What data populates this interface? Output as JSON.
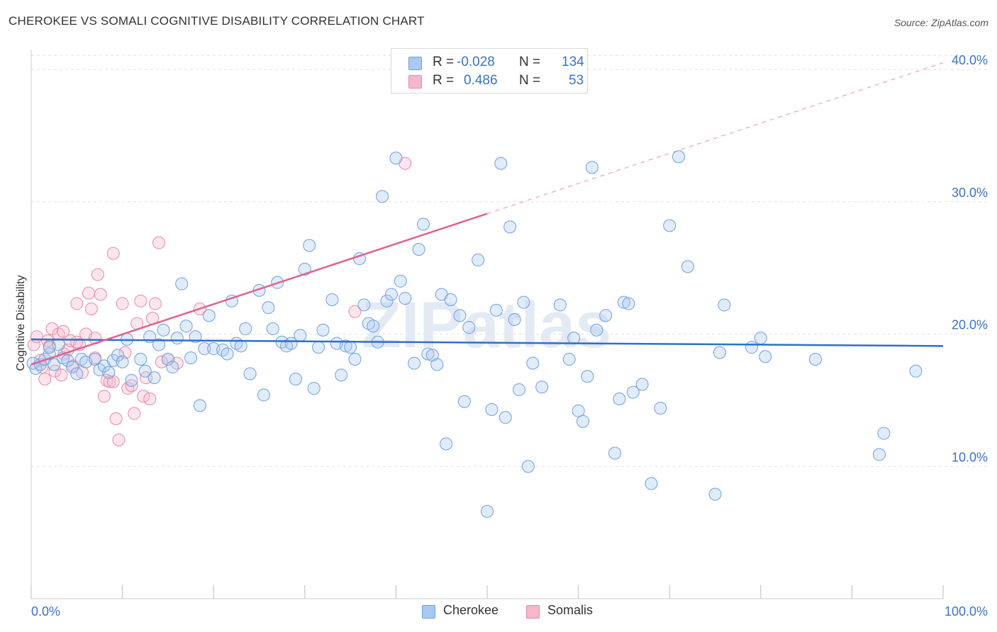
{
  "header": {
    "title": "CHEROKEE VS SOMALI COGNITIVE DISABILITY CORRELATION CHART",
    "source": "Source: ZipAtlas.com"
  },
  "watermark": "ZIPatlas",
  "legend": {
    "r_label": "R =",
    "n_label": "N =",
    "rows": [
      {
        "name": "Cherokee",
        "r": "-0.028",
        "n": "134",
        "fill": "#aac8f0",
        "stroke": "#6f9fdc"
      },
      {
        "name": "Somalis",
        "r": "0.486",
        "n": "53",
        "fill": "#f5b8cb",
        "stroke": "#e889a6"
      }
    ]
  },
  "colors": {
    "cherokee_fill": "rgba(170,200,240,0.35)",
    "cherokee_stroke": "#6f9fdc",
    "cherokee_line": "#2e6fcd",
    "somali_fill": "rgba(245,184,203,0.35)",
    "somali_stroke": "#e889a6",
    "somali_line": "#e0628e",
    "tick_label": "#3b73c4",
    "grid": "#e2e2e2"
  },
  "chart_data": {
    "type": "scatter",
    "title": "CHEROKEE VS SOMALI COGNITIVE DISABILITY CORRELATION CHART",
    "xlabel": "",
    "ylabel": "Cognitive Disability",
    "xlim": [
      0,
      100
    ],
    "ylim": [
      0,
      41.5
    ],
    "x_tick_labels": [
      "0.0%",
      "100.0%"
    ],
    "y_ticks": [
      10,
      20,
      30,
      40
    ],
    "y_tick_labels": [
      "10.0%",
      "20.0%",
      "30.0%",
      "40.0%"
    ],
    "grid": true,
    "legend_position": "top-center",
    "series": [
      {
        "name": "Cherokee",
        "trend": {
          "x": [
            0,
            100
          ],
          "y": [
            19.6,
            19.1
          ],
          "style": "solid"
        },
        "points": [
          [
            0.2,
            17.8
          ],
          [
            0.5,
            17.4
          ],
          [
            1,
            17.7
          ],
          [
            1.5,
            18.1
          ],
          [
            2,
            18.5
          ],
          [
            2.5,
            17.7
          ],
          [
            3,
            19.2
          ],
          [
            3.5,
            18.2
          ],
          [
            4,
            18.0
          ],
          [
            4.5,
            17.5
          ],
          [
            5,
            17.0
          ],
          [
            5.5,
            18.1
          ],
          [
            6,
            17.9
          ],
          [
            7,
            18.1
          ],
          [
            7.5,
            17.3
          ],
          [
            8,
            17.6
          ],
          [
            8.5,
            17.1
          ],
          [
            9,
            18.0
          ],
          [
            9.5,
            18.4
          ],
          [
            10,
            17.9
          ],
          [
            10.5,
            19.6
          ],
          [
            11,
            16.5
          ],
          [
            12,
            18.1
          ],
          [
            12.5,
            17.2
          ],
          [
            13,
            19.8
          ],
          [
            13.5,
            16.7
          ],
          [
            14,
            19.2
          ],
          [
            14.5,
            20.3
          ],
          [
            15,
            18.1
          ],
          [
            15.5,
            17.5
          ],
          [
            16,
            19.7
          ],
          [
            16.5,
            23.8
          ],
          [
            17,
            20.6
          ],
          [
            17.5,
            18.2
          ],
          [
            18,
            19.8
          ],
          [
            18.5,
            14.6
          ],
          [
            19,
            18.9
          ],
          [
            19.5,
            21.4
          ],
          [
            20,
            18.9
          ],
          [
            21,
            18.8
          ],
          [
            21.5,
            18.5
          ],
          [
            22,
            22.5
          ],
          [
            22.5,
            19.3
          ],
          [
            23,
            19.1
          ],
          [
            23.5,
            20.4
          ],
          [
            24,
            17.0
          ],
          [
            25,
            23.3
          ],
          [
            25.5,
            15.4
          ],
          [
            26,
            22.0
          ],
          [
            26.5,
            20.4
          ],
          [
            27,
            23.9
          ],
          [
            27.5,
            19.4
          ],
          [
            28,
            19.1
          ],
          [
            28.5,
            19.3
          ],
          [
            29,
            16.6
          ],
          [
            29.5,
            19.9
          ],
          [
            30,
            24.9
          ],
          [
            30.5,
            26.7
          ],
          [
            31,
            15.9
          ],
          [
            31.5,
            19.0
          ],
          [
            32,
            20.3
          ],
          [
            33,
            22.6
          ],
          [
            33.5,
            19.3
          ],
          [
            34,
            16.9
          ],
          [
            34.5,
            19.1
          ],
          [
            35,
            19.0
          ],
          [
            35.5,
            18.1
          ],
          [
            36,
            25.7
          ],
          [
            36.5,
            22.2
          ],
          [
            37,
            20.8
          ],
          [
            37.5,
            20.6
          ],
          [
            38,
            19.4
          ],
          [
            38.5,
            30.4
          ],
          [
            39,
            22.5
          ],
          [
            39.5,
            23.0
          ],
          [
            40,
            33.3
          ],
          [
            40.5,
            24.0
          ],
          [
            41,
            22.7
          ],
          [
            42,
            17.8
          ],
          [
            42.5,
            26.4
          ],
          [
            43,
            28.3
          ],
          [
            43.5,
            18.5
          ],
          [
            44,
            18.4
          ],
          [
            44.5,
            17.7
          ],
          [
            45,
            23.0
          ],
          [
            45.5,
            11.7
          ],
          [
            46,
            22.6
          ],
          [
            47,
            21.4
          ],
          [
            47.5,
            14.9
          ],
          [
            48,
            20.5
          ],
          [
            49,
            25.6
          ],
          [
            50,
            6.6
          ],
          [
            50.5,
            14.3
          ],
          [
            51,
            21.8
          ],
          [
            51.5,
            32.9
          ],
          [
            52,
            13.7
          ],
          [
            52.5,
            28.1
          ],
          [
            53,
            21.1
          ],
          [
            53.5,
            15.8
          ],
          [
            54,
            22.4
          ],
          [
            54.5,
            10.0
          ],
          [
            55,
            17.8
          ],
          [
            56,
            16.0
          ],
          [
            58,
            22.2
          ],
          [
            59,
            18.1
          ],
          [
            59.5,
            19.7
          ],
          [
            60,
            14.2
          ],
          [
            60.5,
            13.4
          ],
          [
            61,
            16.8
          ],
          [
            61.5,
            32.6
          ],
          [
            62,
            20.3
          ],
          [
            63,
            21.4
          ],
          [
            64,
            11.0
          ],
          [
            64.5,
            15.1
          ],
          [
            65,
            22.4
          ],
          [
            65.5,
            22.3
          ],
          [
            66,
            15.6
          ],
          [
            67,
            16.2
          ],
          [
            68,
            8.7
          ],
          [
            69,
            14.4
          ],
          [
            70,
            28.2
          ],
          [
            71,
            33.4
          ],
          [
            72,
            25.1
          ],
          [
            75,
            7.9
          ],
          [
            75.5,
            18.6
          ],
          [
            76,
            22.2
          ],
          [
            79,
            19.0
          ],
          [
            80,
            19.7
          ],
          [
            80.5,
            18.3
          ],
          [
            86,
            18.1
          ],
          [
            93,
            10.9
          ],
          [
            93.5,
            12.5
          ],
          [
            97,
            17.2
          ],
          [
            2,
            19.0
          ]
        ]
      },
      {
        "name": "Somalis",
        "trend": {
          "x": [
            0,
            50,
            100
          ],
          "y": [
            17.7,
            29.1,
            40.5
          ],
          "style": "solid-then-dashed",
          "solid_until_x": 50
        },
        "points": [
          [
            0.3,
            19.2
          ],
          [
            0.6,
            19.8
          ],
          [
            1,
            18.0
          ],
          [
            1.2,
            17.5
          ],
          [
            1.5,
            16.6
          ],
          [
            1.8,
            19.5
          ],
          [
            2,
            19.1
          ],
          [
            2.3,
            20.4
          ],
          [
            2.6,
            17.2
          ],
          [
            3,
            20.0
          ],
          [
            3.3,
            16.9
          ],
          [
            3.6,
            18.5
          ],
          [
            4,
            18.8
          ],
          [
            4.3,
            19.5
          ],
          [
            4.6,
            17.6
          ],
          [
            5,
            22.3
          ],
          [
            5.3,
            19.2
          ],
          [
            5.6,
            17.1
          ],
          [
            6,
            20.0
          ],
          [
            6.3,
            23.1
          ],
          [
            6.6,
            21.9
          ],
          [
            7,
            18.2
          ],
          [
            7.3,
            24.5
          ],
          [
            7.6,
            23.0
          ],
          [
            8,
            15.3
          ],
          [
            8.3,
            16.5
          ],
          [
            8.6,
            16.4
          ],
          [
            9,
            26.1
          ],
          [
            9.3,
            13.6
          ],
          [
            9.6,
            12.0
          ],
          [
            10,
            22.3
          ],
          [
            10.3,
            18.6
          ],
          [
            10.6,
            15.9
          ],
          [
            11,
            16.1
          ],
          [
            11.3,
            14.0
          ],
          [
            11.6,
            20.8
          ],
          [
            12,
            22.5
          ],
          [
            12.3,
            15.3
          ],
          [
            12.6,
            16.7
          ],
          [
            13,
            15.1
          ],
          [
            13.3,
            21.2
          ],
          [
            13.6,
            22.3
          ],
          [
            14,
            26.9
          ],
          [
            14.3,
            17.9
          ],
          [
            15,
            18.1
          ],
          [
            16,
            17.8
          ],
          [
            18.5,
            21.9
          ],
          [
            35.5,
            21.7
          ],
          [
            41,
            32.9
          ],
          [
            3.5,
            20.2
          ],
          [
            5,
            19.4
          ],
          [
            7,
            19.7
          ],
          [
            9,
            16.4
          ]
        ]
      }
    ]
  }
}
